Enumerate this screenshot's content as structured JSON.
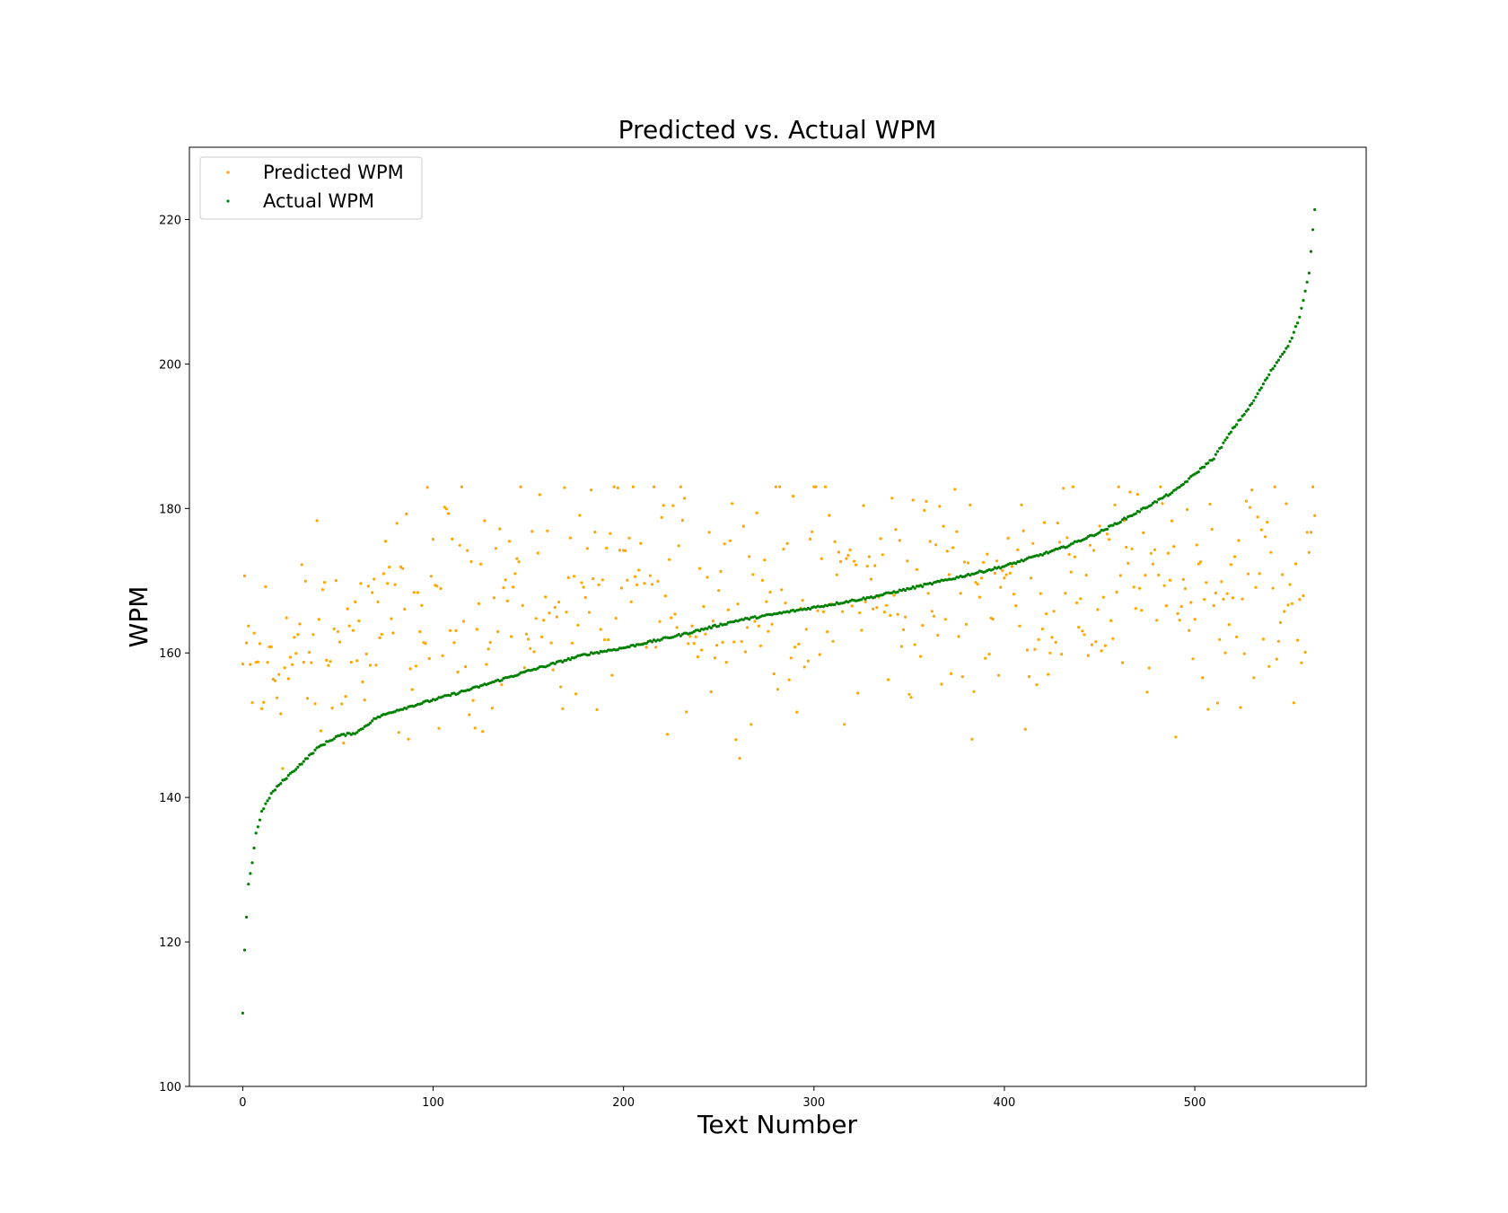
{
  "chart_data": {
    "type": "scatter",
    "title": "Predicted vs. Actual WPM",
    "xlabel": "Text Number",
    "ylabel": "WPM",
    "xlim": [
      -28,
      590
    ],
    "ylim": [
      100,
      230
    ],
    "xticks": [
      0,
      100,
      200,
      300,
      400,
      500
    ],
    "yticks": [
      100,
      120,
      140,
      160,
      180,
      200,
      220
    ],
    "n_points": 564,
    "legend_position": "top-left",
    "grid": false,
    "series": [
      {
        "name": "Predicted WPM",
        "color": "#ffa500",
        "description": "scattered around 145-182 WPM, mean ~165",
        "y_min": 137,
        "y_max": 183
      },
      {
        "name": "Actual WPM",
        "color": "#008000",
        "description": "sorted ascending actual WPM values",
        "anchors": [
          [
            0,
            110
          ],
          [
            1,
            119
          ],
          [
            2,
            123.5
          ],
          [
            3,
            128
          ],
          [
            5,
            131
          ],
          [
            7,
            135
          ],
          [
            10,
            138
          ],
          [
            15,
            140.5
          ],
          [
            20,
            142
          ],
          [
            30,
            144.5
          ],
          [
            40,
            147
          ],
          [
            50,
            148.5
          ],
          [
            60,
            149
          ],
          [
            70,
            151
          ],
          [
            80,
            152
          ],
          [
            100,
            153.5
          ],
          [
            120,
            155
          ],
          [
            150,
            157.5
          ],
          [
            180,
            159.8
          ],
          [
            200,
            160.7
          ],
          [
            230,
            162.5
          ],
          [
            260,
            164.5
          ],
          [
            300,
            166.3
          ],
          [
            330,
            167.7
          ],
          [
            360,
            169.5
          ],
          [
            400,
            172
          ],
          [
            430,
            174.5
          ],
          [
            450,
            176.7
          ],
          [
            470,
            179.5
          ],
          [
            490,
            182.5
          ],
          [
            510,
            187
          ],
          [
            520,
            191
          ],
          [
            530,
            194.5
          ],
          [
            540,
            199
          ],
          [
            550,
            203
          ],
          [
            555,
            206.5
          ],
          [
            558,
            210
          ],
          [
            560,
            212.5
          ],
          [
            563,
            221.5
          ]
        ]
      }
    ]
  }
}
